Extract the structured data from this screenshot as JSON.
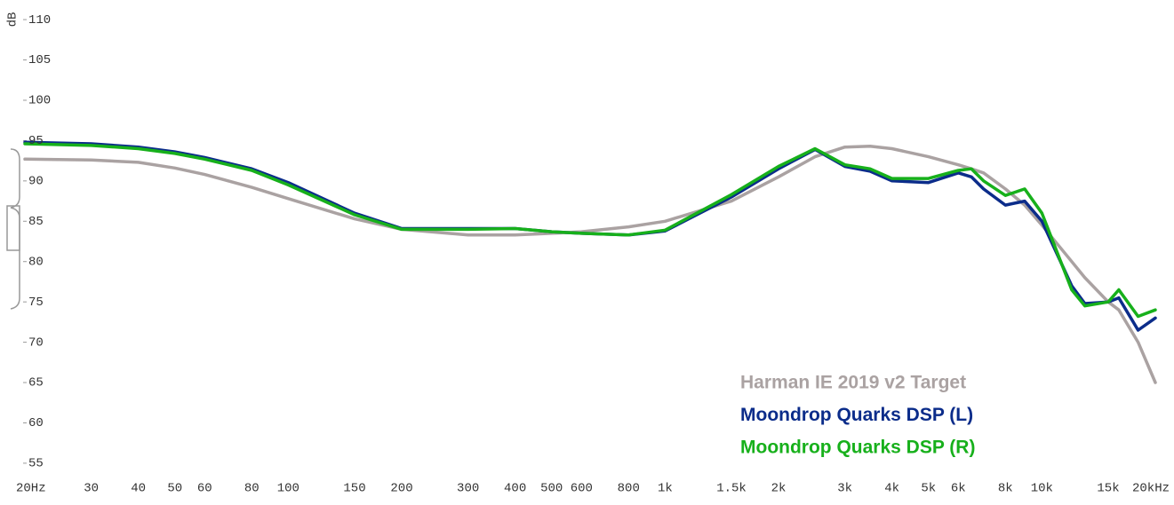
{
  "chart_data": {
    "type": "line",
    "y_label": "dB",
    "log_x": true,
    "x": [
      20,
      30,
      40,
      50,
      60,
      80,
      100,
      150,
      200,
      300,
      400,
      500,
      600,
      800,
      1000,
      1500,
      2000,
      2500,
      3000,
      3500,
      4000,
      5000,
      6000,
      6500,
      7000,
      8000,
      9000,
      10000,
      12000,
      13000,
      15000,
      16000,
      18000,
      20000
    ],
    "series": [
      {
        "name": "Harman IE 2019 v2 Target",
        "color": "#aaa2a2",
        "values": [
          92.7,
          92.6,
          92.3,
          91.6,
          90.8,
          89.2,
          87.8,
          85.3,
          84.0,
          83.3,
          83.3,
          83.5,
          83.7,
          84.3,
          85.0,
          87.5,
          90.5,
          93.0,
          94.2,
          94.3,
          94.0,
          93.0,
          92.0,
          91.5,
          91.0,
          89.0,
          87.0,
          84.5,
          80.0,
          78.0,
          75.0,
          74.0,
          70.0,
          65.0
        ]
      },
      {
        "name": "Moondrop Quarks DSP (L)",
        "color": "#0b2c8a",
        "values": [
          94.8,
          94.6,
          94.2,
          93.6,
          92.9,
          91.5,
          89.8,
          86.0,
          84.1,
          84.1,
          84.1,
          83.7,
          83.5,
          83.3,
          83.8,
          88.0,
          91.5,
          93.9,
          91.8,
          91.2,
          90.0,
          89.8,
          91.0,
          90.5,
          89.0,
          87.0,
          87.5,
          85.0,
          77.0,
          74.8,
          75.0,
          75.5,
          71.5,
          73.0
        ]
      },
      {
        "name": "Moondrop Quarks DSP (R)",
        "color": "#17b01b",
        "values": [
          94.6,
          94.4,
          94.0,
          93.4,
          92.7,
          91.3,
          89.5,
          85.8,
          84.0,
          84.0,
          84.1,
          83.7,
          83.5,
          83.3,
          83.9,
          88.3,
          91.8,
          94.0,
          92.0,
          91.5,
          90.3,
          90.3,
          91.3,
          91.5,
          90.0,
          88.2,
          89.0,
          86.0,
          76.5,
          74.5,
          75.0,
          76.5,
          73.2,
          74.0
        ]
      }
    ],
    "xlim": [
      20,
      20000
    ],
    "xticks": [
      {
        "value": 20,
        "label": "20Hz"
      },
      30,
      40,
      50,
      60,
      80,
      100,
      150,
      200,
      300,
      400,
      500,
      600,
      800,
      {
        "value": 1000,
        "label": "1k"
      },
      {
        "value": 1500,
        "label": "1.5k"
      },
      {
        "value": 2000,
        "label": "2k"
      },
      {
        "value": 3000,
        "label": "3k"
      },
      {
        "value": 4000,
        "label": "4k"
      },
      {
        "value": 5000,
        "label": "5k"
      },
      {
        "value": 6000,
        "label": "6k"
      },
      {
        "value": 8000,
        "label": "8k"
      },
      {
        "value": 10000,
        "label": "10k"
      },
      {
        "value": 15000,
        "label": "15k"
      },
      {
        "value": 20000,
        "label": "20kHz"
      }
    ],
    "x_minor_grid": [
      70,
      90,
      700,
      900,
      7000,
      9000
    ],
    "ylim": [
      54,
      111
    ],
    "yticks": [
      55,
      60,
      65,
      70,
      75,
      80,
      85,
      90,
      95,
      100,
      105,
      110
    ]
  }
}
